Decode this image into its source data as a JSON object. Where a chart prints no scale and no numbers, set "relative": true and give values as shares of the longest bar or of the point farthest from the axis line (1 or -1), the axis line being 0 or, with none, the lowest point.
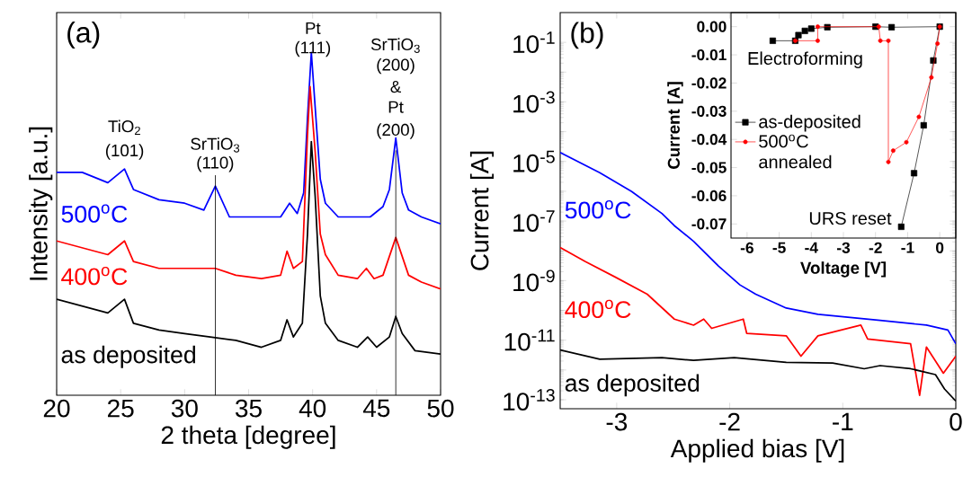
{
  "chart_data": [
    {
      "type": "line",
      "relative": true,
      "xlabel": "2 theta [degree]",
      "ylabel": "Intensity [a.u.]",
      "xlim": [
        20,
        50
      ],
      "xticks": [
        20,
        25,
        30,
        35,
        40,
        45,
        50
      ],
      "legend": false,
      "series": [
        {
          "name": "500$^{o}$C",
          "color": "#0000ff",
          "x": [
            20,
            22,
            24,
            25.3,
            26,
            28,
            30,
            31.5,
            32.4,
            33.5,
            35,
            36.5,
            37.5,
            38.2,
            38.8,
            39.3,
            39.6,
            39.9,
            40.2,
            40.6,
            41,
            42,
            43.5,
            44.5,
            45.5,
            46,
            46.5,
            47,
            47.5,
            48.5,
            50
          ],
          "values": [
            0.65,
            0.65,
            0.62,
            0.66,
            0.6,
            0.57,
            0.56,
            0.54,
            0.61,
            0.52,
            0.52,
            0.52,
            0.52,
            0.56,
            0.53,
            0.59,
            0.81,
            1.0,
            0.84,
            0.63,
            0.56,
            0.52,
            0.52,
            0.52,
            0.55,
            0.6,
            0.75,
            0.59,
            0.54,
            0.52,
            0.5
          ]
        },
        {
          "name": "400$^{o}$C",
          "color": "#ff0000",
          "x": [
            20,
            22,
            24,
            25.3,
            26,
            28,
            30,
            32.4,
            34,
            36,
            37.5,
            38,
            38.5,
            39.2,
            39.6,
            39.8,
            40.2,
            40.6,
            41,
            42,
            43.5,
            44.2,
            44.8,
            45.5,
            46.5,
            47.5,
            48.5,
            50
          ],
          "values": [
            0.45,
            0.43,
            0.41,
            0.45,
            0.39,
            0.37,
            0.37,
            0.37,
            0.35,
            0.34,
            0.35,
            0.42,
            0.37,
            0.39,
            0.76,
            0.9,
            0.71,
            0.47,
            0.41,
            0.35,
            0.34,
            0.37,
            0.34,
            0.35,
            0.46,
            0.35,
            0.33,
            0.31
          ]
        },
        {
          "name": "as deposited",
          "color": "#000000",
          "x": [
            20,
            22,
            24,
            25.3,
            26,
            28,
            30,
            32,
            34,
            36,
            37.5,
            38,
            38.5,
            39.2,
            39.6,
            39.9,
            40.2,
            40.6,
            41,
            42,
            43.5,
            44.3,
            45,
            46,
            46.5,
            47,
            48,
            50
          ],
          "values": [
            0.28,
            0.26,
            0.24,
            0.28,
            0.21,
            0.19,
            0.18,
            0.17,
            0.16,
            0.14,
            0.16,
            0.22,
            0.17,
            0.21,
            0.47,
            0.74,
            0.58,
            0.29,
            0.21,
            0.16,
            0.14,
            0.17,
            0.14,
            0.17,
            0.23,
            0.18,
            0.13,
            0.12
          ]
        }
      ],
      "ref_lines": [
        {
          "axis": "x",
          "value": 32.4,
          "color": "#000000"
        },
        {
          "axis": "x",
          "value": 46.5,
          "color": "#000000"
        }
      ],
      "annotations": [
        "(a)",
        "TiO$_{2}$",
        "(101)",
        "SrTiO$_{3}$",
        "(110)",
        "Pt",
        "(111)",
        "SrTiO$_{3}$",
        "(200)",
        "&",
        "Pt",
        "(200)"
      ]
    },
    {
      "type": "line",
      "log": "y",
      "xlabel": "Applied bias [V]",
      "ylabel": "Current [A]",
      "xlim": [
        -3.5,
        0
      ],
      "xticks": [
        -3,
        -2,
        -1,
        0
      ],
      "ylim": [
        5e-14,
        1
      ],
      "legend": false,
      "yticks": [
        {
          "value": 1e-13,
          "label": "10$^{-13}$"
        },
        {
          "value": 1e-12,
          "label": null
        },
        {
          "value": 1e-11,
          "label": "10$^{-11}$"
        },
        {
          "value": 1e-10,
          "label": null
        },
        {
          "value": 1e-09,
          "label": "10$^{-9}$"
        },
        {
          "value": 1e-08,
          "label": null
        },
        {
          "value": 1e-07,
          "label": "10$^{-7}$"
        },
        {
          "value": 1e-06,
          "label": null
        },
        {
          "value": 1e-05,
          "label": "10$^{-5}$"
        },
        {
          "value": 0.0001,
          "label": null
        },
        {
          "value": 0.001,
          "label": "10$^{-3}$"
        },
        {
          "value": 0.01,
          "label": null
        },
        {
          "value": 0.1,
          "label": "10$^{-1}$"
        }
      ],
      "series": [
        {
          "name": "500$^{o}$C",
          "color": "#0000ff",
          "x": [
            -3.5,
            -3.15,
            -2.87,
            -2.6,
            -2.49,
            -2.32,
            -2.1,
            -1.91,
            -1.77,
            -1.5,
            -1.22,
            -0.67,
            -0.26,
            -0.07,
            0
          ],
          "values": [
            2e-05,
            4.2e-06,
            1e-06,
            1.8e-07,
            7e-08,
            2.1e-08,
            3.1e-09,
            7.2e-10,
            3.5e-10,
            1.2e-10,
            7.4e-11,
            4.6e-11,
            3.2e-11,
            2.2e-11,
            7.6e-12
          ]
        },
        {
          "name": "400$^{o}$C",
          "color": "#ff0000",
          "x": [
            -3.5,
            -3.28,
            -3.01,
            -2.73,
            -2.49,
            -2.32,
            -2.23,
            -2.16,
            -1.88,
            -1.85,
            -1.5,
            -1.37,
            -1.22,
            -0.84,
            -0.78,
            -0.4,
            -0.32,
            -0.26,
            -0.11,
            0
          ],
          "values": [
            1.3e-08,
            4.4e-09,
            1.3e-09,
            3.5e-10,
            5.1e-11,
            3.2e-11,
            5.1e-11,
            2.5e-11,
            5.1e-11,
            1.7e-11,
            1.4e-11,
            2.9e-12,
            1.4e-11,
            3.2e-11,
            1.1e-11,
            7.6e-12,
            1.4e-13,
            5.9e-12,
            7.8e-13,
            2.9e-12
          ]
        },
        {
          "name": "as deposited",
          "color": "#000000",
          "x": [
            -3.5,
            -3.15,
            -2.6,
            -2.32,
            -1.96,
            -1.5,
            -1.09,
            -0.81,
            -0.67,
            -0.4,
            -0.18,
            -0.1,
            0
          ],
          "values": [
            4.7e-12,
            2.3e-12,
            2.6e-12,
            2.1e-12,
            2.6e-12,
            1.8e-12,
            1.7e-12,
            1.1e-12,
            1.4e-12,
            1.1e-12,
            7e-13,
            2.3e-13,
            9e-14
          ]
        }
      ],
      "annotations": [
        "(b)"
      ]
    },
    {
      "type": "line",
      "xlabel": "Voltage [V]",
      "ylabel": "Current [A]",
      "xlim": [
        -6.5,
        0.5
      ],
      "xticks": [
        -6,
        -5,
        -4,
        -3,
        -2,
        -1,
        0
      ],
      "ylim": [
        -0.075,
        0.005
      ],
      "legend": "left",
      "yticks": [
        {
          "value": -0.07,
          "label": "-0.07"
        },
        {
          "value": -0.06,
          "label": "-0.06"
        },
        {
          "value": -0.05,
          "label": "-0.05"
        },
        {
          "value": -0.04,
          "label": "-0.04"
        },
        {
          "value": -0.03,
          "label": "-0.03"
        },
        {
          "value": -0.02,
          "label": "-0.02"
        },
        {
          "value": -0.01,
          "label": "-0.01"
        },
        {
          "value": 0,
          "label": "0.00"
        }
      ],
      "series": [
        {
          "name": "as-deposited",
          "color": "#000000",
          "marker": "square",
          "x": [
            -5.2,
            -4.5,
            -4.4,
            -4.2,
            -4,
            -3.5,
            -2,
            -1.5,
            0,
            -0.2,
            -0.5,
            -0.8,
            -1.2
          ],
          "values": [
            -0.005,
            -0.005,
            -0.003,
            -0.0015,
            -0.0007,
            -0.0002,
            0,
            -0.0002,
            0,
            -0.012,
            -0.035,
            -0.052,
            -0.071
          ]
        },
        {
          "name": "500$^{o}$C annealed",
          "color": "#ff0000",
          "marker": "circle",
          "x": [
            -4.5,
            -3.8,
            -3.8,
            -1.9,
            -1.85,
            -1.6,
            -1.6,
            -1.45,
            -1.04,
            -0.65,
            -0.26,
            -0.07,
            0
          ],
          "values": [
            -0.005,
            -0.005,
            0,
            0,
            -0.005,
            -0.005,
            -0.048,
            -0.044,
            -0.041,
            -0.032,
            -0.018,
            -0.006,
            0
          ]
        }
      ],
      "annotations": [
        "Electroforming",
        "URS reset"
      ]
    }
  ]
}
